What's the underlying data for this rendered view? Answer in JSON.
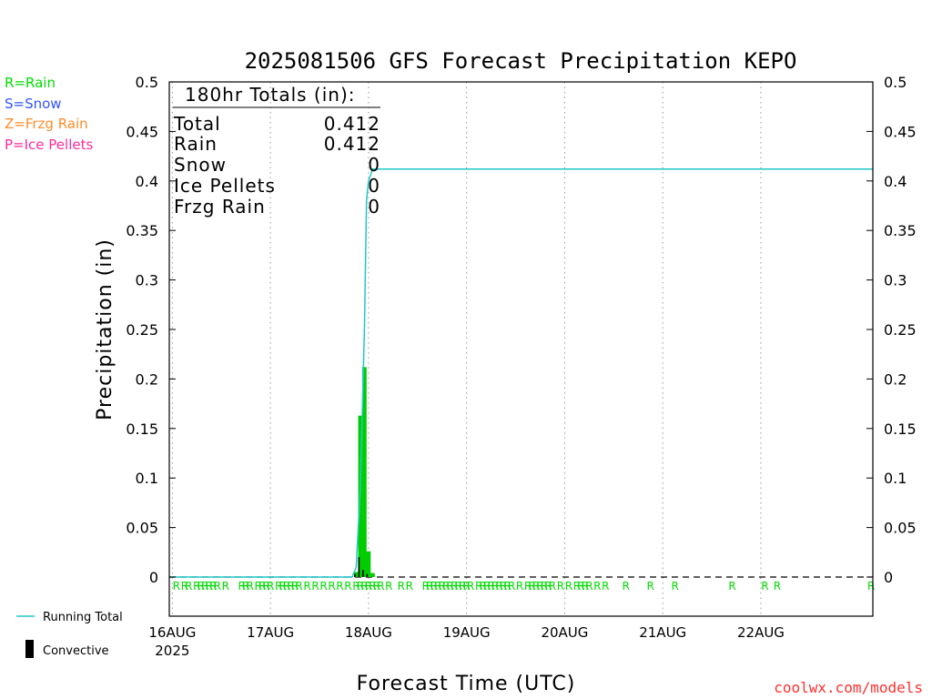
{
  "chart_data": {
    "type": "bar",
    "title": "2025081506 GFS Forecast Precipitation KEPO",
    "ylabel": "Precipitation (in)",
    "xlabel": "Forecast Time (UTC)",
    "ylim": [
      0,
      0.5
    ],
    "y_ticks": [
      "0",
      "0.05",
      "0.1",
      "0.15",
      "0.2",
      "0.25",
      "0.3",
      "0.35",
      "0.4",
      "0.45",
      "0.5"
    ],
    "x_axis_start_hours_after_16aug00z": -0.75,
    "x_axis_end_hours_after_16aug00z": 171.4,
    "x_ticks": [
      {
        "day_index": 0,
        "label": "16AUG",
        "sublabel": "2025"
      },
      {
        "day_index": 1,
        "label": "17AUG"
      },
      {
        "day_index": 2,
        "label": "18AUG"
      },
      {
        "day_index": 3,
        "label": "19AUG"
      },
      {
        "day_index": 4,
        "label": "20AUG"
      },
      {
        "day_index": 5,
        "label": "21AUG"
      },
      {
        "day_index": 6,
        "label": "22AUG"
      }
    ],
    "grid": "vertical dotted at each day",
    "series": [
      {
        "name": "Running Total",
        "kind": "line",
        "color": "#20c8c8",
        "points": [
          [
            -18,
            0
          ],
          [
            44,
            0
          ],
          [
            45,
            0.01
          ],
          [
            46,
            0.09
          ],
          [
            47,
            0.25
          ],
          [
            47.5,
            0.38
          ],
          [
            48,
            0.4
          ],
          [
            49,
            0.412
          ],
          [
            171.4,
            0.412
          ]
        ]
      },
      {
        "name": "Rain",
        "kind": "bar",
        "color": "#00cc00",
        "points": [
          [
            45,
            0.005
          ],
          [
            46,
            0.163
          ],
          [
            47,
            0.212
          ],
          [
            48,
            0.026
          ],
          [
            49,
            0.004
          ]
        ]
      },
      {
        "name": "Convective",
        "kind": "bar",
        "color": "#000000",
        "points": [
          [
            45,
            0.003
          ],
          [
            46,
            0.02
          ],
          [
            47,
            0.007
          ],
          [
            48,
            0.003
          ]
        ]
      }
    ],
    "ptype_marker": "R",
    "ptype_hours": [
      -16,
      -15,
      -14,
      -13,
      -12,
      -11,
      -10,
      -9,
      -8,
      -7,
      -5,
      -3,
      -2,
      -1,
      1,
      3,
      4,
      6,
      7,
      8,
      9,
      10,
      11,
      13,
      17,
      18,
      19,
      21,
      22,
      23,
      24,
      26,
      27,
      28,
      29,
      30,
      31,
      33,
      35,
      37,
      39,
      41,
      43,
      45,
      46,
      47,
      48,
      49,
      50,
      51,
      53,
      56,
      58,
      62,
      63,
      64,
      65,
      66,
      67,
      68,
      69,
      70,
      71,
      72,
      73,
      75,
      76,
      77,
      78,
      79,
      80,
      81,
      82,
      83,
      85,
      87,
      88,
      89,
      90,
      91,
      92,
      93,
      95,
      97,
      99,
      100,
      101,
      102,
      104,
      106,
      111,
      117,
      123,
      137,
      145,
      148,
      171
    ]
  },
  "legend_ptypes": [
    {
      "text": "R=Rain",
      "color": "#00dd00"
    },
    {
      "text": "S=Snow",
      "color": "#3355ff"
    },
    {
      "text": "Z=Frzg Rain",
      "color": "#ff8c28"
    },
    {
      "text": "P=Ice Pellets",
      "color": "#ff2a9e"
    }
  ],
  "totals": {
    "heading": "180hr Totals (in):",
    "rows": [
      {
        "label": "Total",
        "value": "0.412"
      },
      {
        "label": "Rain",
        "value": "0.412"
      },
      {
        "label": "Snow",
        "value": "0"
      },
      {
        "label": "Ice Pellets",
        "value": "0"
      },
      {
        "label": "Frzg Rain",
        "value": "0"
      }
    ]
  },
  "bottom_legend": {
    "running_total": "Running Total",
    "convective": "Convective"
  },
  "credit": {
    "text": "coolwx.com/models",
    "color": "#ff3030"
  },
  "colors": {
    "frame": "#000000",
    "grid": "#999999",
    "zero_line": "#000000"
  }
}
